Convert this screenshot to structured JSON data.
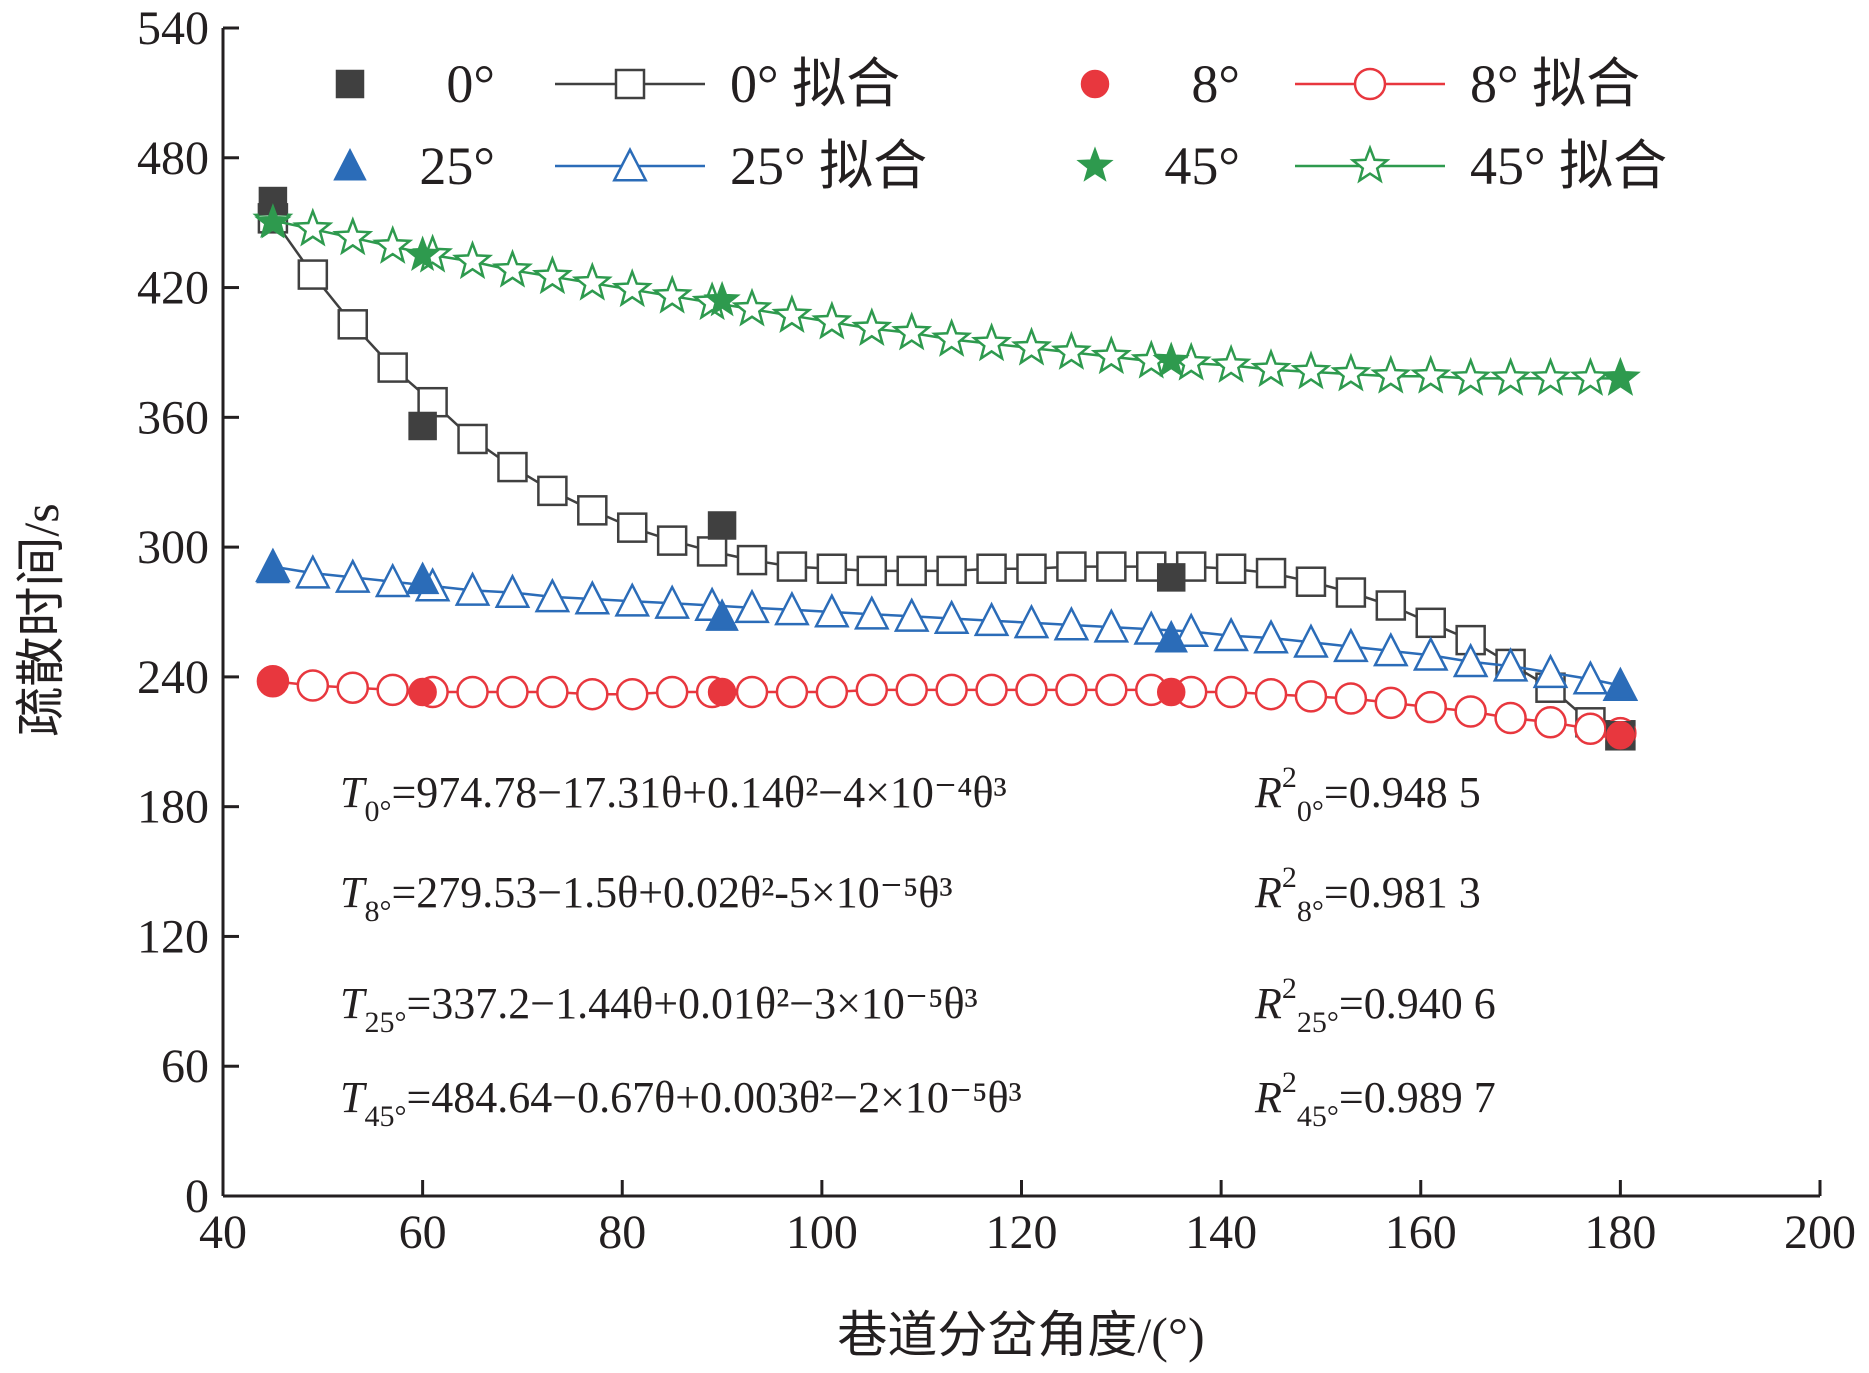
{
  "chart_data": {
    "type": "scatter",
    "xlabel": "巷道分岔角度/(°)",
    "ylabel": "疏散时间/s",
    "xlim": [
      40,
      200
    ],
    "ylim": [
      0,
      540
    ],
    "x_ticks": [
      40,
      60,
      80,
      100,
      120,
      140,
      160,
      180,
      200
    ],
    "y_ticks": [
      0,
      60,
      120,
      180,
      240,
      300,
      360,
      420,
      480,
      540
    ],
    "grid": false,
    "legend_position": "top",
    "series": [
      {
        "key": "s0",
        "name": "0°",
        "fit_name": "0° 拟合",
        "color": "#404040",
        "marker": "square",
        "x": [
          45,
          60,
          90,
          135,
          180
        ],
        "y": [
          460,
          356,
          310,
          286,
          213
        ]
      },
      {
        "key": "s8",
        "name": "8°",
        "fit_name": "8° 拟合",
        "color": "#e8373e",
        "marker": "circle",
        "x": [
          45,
          60,
          90,
          135,
          180
        ],
        "y": [
          238,
          233,
          233,
          233,
          213
        ]
      },
      {
        "key": "s25",
        "name": "25°",
        "fit_name": "25° 拟合",
        "color": "#2b6cb8",
        "marker": "triangle",
        "x": [
          45,
          60,
          90,
          135,
          180
        ],
        "y": [
          290,
          285,
          268,
          258,
          236
        ]
      },
      {
        "key": "s45",
        "name": "45°",
        "fit_name": "45° 拟合",
        "color": "#2e9a4e",
        "marker": "star",
        "x": [
          45,
          60,
          90,
          135,
          180
        ],
        "y": [
          450,
          435,
          414,
          386,
          378
        ]
      }
    ],
    "fits": [
      {
        "series": "s0",
        "x": [
          45,
          49,
          53,
          57,
          61,
          65,
          69,
          73,
          77,
          81,
          85,
          89,
          93,
          97,
          101,
          105,
          109,
          113,
          117,
          121,
          125,
          129,
          133,
          137,
          141,
          145,
          149,
          153,
          157,
          161,
          165,
          169,
          173,
          177,
          180
        ],
        "y": [
          452,
          426,
          403,
          383,
          367,
          350,
          337,
          326,
          317,
          309,
          303,
          298,
          294,
          291,
          290,
          289,
          289,
          289,
          290,
          290,
          291,
          291,
          291,
          291,
          290,
          288,
          284,
          279,
          273,
          265,
          257,
          246,
          235,
          219,
          213
        ]
      },
      {
        "series": "s8",
        "x": [
          45,
          49,
          53,
          57,
          61,
          65,
          69,
          73,
          77,
          81,
          85,
          89,
          93,
          97,
          101,
          105,
          109,
          113,
          117,
          121,
          125,
          129,
          133,
          137,
          141,
          145,
          149,
          153,
          157,
          161,
          165,
          169,
          173,
          177,
          180
        ],
        "y": [
          238,
          236,
          235,
          234,
          233,
          233,
          233,
          233,
          232,
          232,
          233,
          233,
          233,
          233,
          233,
          234,
          234,
          234,
          234,
          234,
          234,
          234,
          234,
          233,
          233,
          232,
          231,
          230,
          228,
          226,
          224,
          221,
          219,
          216,
          214
        ]
      },
      {
        "series": "s25",
        "x": [
          45,
          49,
          53,
          57,
          61,
          65,
          69,
          73,
          77,
          81,
          85,
          89,
          93,
          97,
          101,
          105,
          109,
          113,
          117,
          121,
          125,
          129,
          133,
          137,
          141,
          145,
          149,
          153,
          157,
          161,
          165,
          169,
          173,
          177,
          180
        ],
        "y": [
          291,
          288,
          286,
          284,
          282,
          280,
          279,
          277,
          276,
          275,
          274,
          273,
          272,
          271,
          270,
          269,
          268,
          267,
          266,
          265,
          264,
          263,
          262,
          261,
          259,
          258,
          256,
          254,
          252,
          250,
          247,
          245,
          242,
          239,
          236
        ]
      },
      {
        "series": "s45",
        "x": [
          45,
          49,
          53,
          57,
          61,
          65,
          69,
          73,
          77,
          81,
          85,
          89,
          93,
          97,
          101,
          105,
          109,
          113,
          117,
          121,
          125,
          129,
          133,
          137,
          141,
          145,
          149,
          153,
          157,
          161,
          165,
          169,
          173,
          177,
          180
        ],
        "y": [
          451,
          447,
          443,
          439,
          435,
          432,
          428,
          425,
          422,
          419,
          416,
          413,
          410,
          407,
          404,
          401,
          399,
          396,
          394,
          392,
          390,
          388,
          386,
          385,
          384,
          382,
          381,
          380,
          379,
          379,
          378,
          378,
          378,
          378,
          378
        ]
      }
    ],
    "annotations": {
      "equations": [
        {
          "T": "T",
          "Tsub": "0°",
          "body": "=974.78−17.31θ+0.14θ²−4×10⁻⁴θ³",
          "R": "R",
          "Rsup": "2",
          "Rsub": "0°",
          "rval": "=0.948 5"
        },
        {
          "T": "T",
          "Tsub": "8°",
          "body": "=279.53−1.5θ+0.02θ²-5×10⁻⁵θ³",
          "R": "R",
          "Rsup": "2",
          "Rsub": "8°",
          "rval": "=0.981 3"
        },
        {
          "T": "T",
          "Tsub": "25°",
          "body": "=337.2−1.44θ+0.01θ²−3×10⁻⁵θ³",
          "R": "R",
          "Rsup": "2",
          "Rsub": "25°",
          "rval": "=0.940 6"
        },
        {
          "T": "T",
          "Tsub": "45°",
          "body": "=484.64−0.67θ+0.003θ²−2×10⁻⁵θ³",
          "R": "R",
          "Rsup": "2",
          "Rsub": "45°",
          "rval": "=0.989 7"
        }
      ]
    }
  }
}
